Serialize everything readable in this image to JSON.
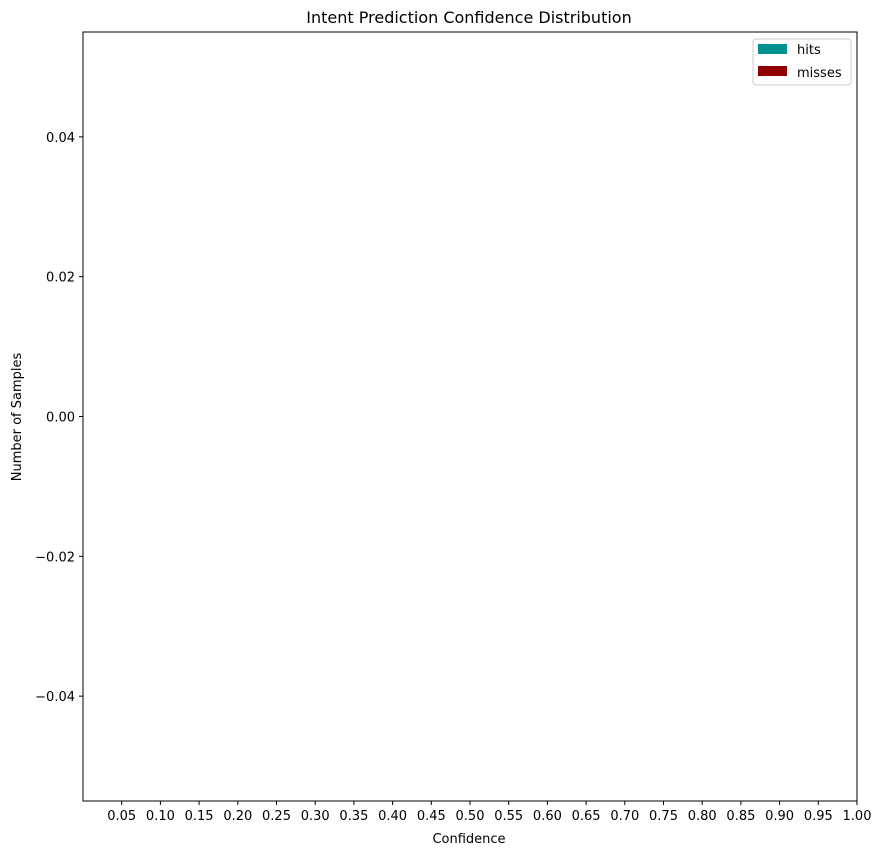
{
  "chart_data": {
    "type": "bar",
    "title": "Intent Prediction Confidence Distribution",
    "xlabel": "Confidence",
    "ylabel": "Number of Samples",
    "categories": [
      "0.05",
      "0.10",
      "0.15",
      "0.20",
      "0.25",
      "0.30",
      "0.35",
      "0.40",
      "0.45",
      "0.50",
      "0.55",
      "0.60",
      "0.65",
      "0.70",
      "0.75",
      "0.80",
      "0.85",
      "0.90",
      "0.95",
      "1.00"
    ],
    "x_ticks": [
      "0.05",
      "0.10",
      "0.15",
      "0.20",
      "0.25",
      "0.30",
      "0.35",
      "0.40",
      "0.45",
      "0.50",
      "0.55",
      "0.60",
      "0.65",
      "0.70",
      "0.75",
      "0.80",
      "0.85",
      "0.90",
      "0.95",
      "1.00"
    ],
    "y_ticks": [
      0.04,
      0.02,
      0.0,
      -0.02,
      -0.04
    ],
    "y_tick_labels": [
      "0.04",
      "0.02",
      "0.00",
      "−0.02",
      "−0.04"
    ],
    "ylim": [
      -0.055,
      0.055
    ],
    "xlim": [
      0.0,
      1.0
    ],
    "series": [
      {
        "name": "hits",
        "color": "#009090",
        "values": [
          0,
          0,
          0,
          0,
          0,
          0,
          0,
          0,
          0,
          0,
          0,
          0,
          0,
          0,
          0,
          0,
          0,
          0,
          0,
          0
        ]
      },
      {
        "name": "misses",
        "color": "#900000",
        "values": [
          0,
          0,
          0,
          0,
          0,
          0,
          0,
          0,
          0,
          0,
          0,
          0,
          0,
          0,
          0,
          0,
          0,
          0,
          0,
          0
        ]
      }
    ],
    "legend_position": "top-right",
    "grid": false
  }
}
